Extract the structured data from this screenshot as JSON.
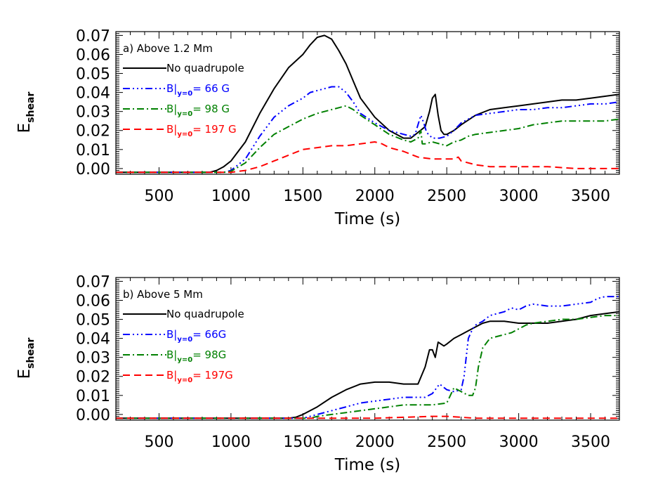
{
  "colors": {
    "no_quadrupole": "#000000",
    "b66": "#0000ff",
    "b98": "#008000",
    "b197": "#ff0000"
  },
  "chart_data": [
    {
      "type": "line",
      "panel_label": "a) Above 1.2 Mm",
      "xlabel": "Time (s)",
      "ylabel_main": "E",
      "ylabel_sub": "shear",
      "xlim": [
        200,
        3700
      ],
      "ylim": [
        -0.003,
        0.072
      ],
      "x_ticks": [
        500,
        1000,
        1500,
        2000,
        2500,
        3000,
        3500
      ],
      "x_tick_labels": [
        "500",
        "1000",
        "1500",
        "2000",
        "2500",
        "3000",
        "3500"
      ],
      "y_ticks": [
        0.0,
        0.01,
        0.02,
        0.03,
        0.04,
        0.05,
        0.06,
        0.07
      ],
      "y_tick_labels": [
        "0.00",
        "0.01",
        "0.02",
        "0.03",
        "0.04",
        "0.05",
        "0.06",
        "0.07"
      ],
      "series": [
        {
          "key": "no_quadrupole",
          "legend_main": "No quadrupole",
          "legend_sub": "",
          "legend_value": "",
          "dash": "",
          "x": [
            200,
            850,
            900,
            950,
            1000,
            1100,
            1200,
            1300,
            1400,
            1500,
            1550,
            1600,
            1650,
            1700,
            1750,
            1800,
            1850,
            1900,
            2000,
            2100,
            2200,
            2250,
            2300,
            2350,
            2380,
            2400,
            2420,
            2440,
            2460,
            2480,
            2500,
            2550,
            2600,
            2700,
            2800,
            2900,
            3000,
            3100,
            3200,
            3300,
            3400,
            3500,
            3600,
            3700
          ],
          "y": [
            -0.002,
            -0.002,
            -0.001,
            0.001,
            0.004,
            0.014,
            0.029,
            0.042,
            0.053,
            0.06,
            0.065,
            0.069,
            0.07,
            0.068,
            0.062,
            0.055,
            0.046,
            0.037,
            0.027,
            0.02,
            0.016,
            0.016,
            0.019,
            0.022,
            0.03,
            0.037,
            0.039,
            0.028,
            0.02,
            0.018,
            0.018,
            0.02,
            0.023,
            0.028,
            0.031,
            0.032,
            0.033,
            0.034,
            0.035,
            0.036,
            0.036,
            0.037,
            0.038,
            0.039
          ]
        },
        {
          "key": "b66",
          "legend_main": "B",
          "legend_sub": "y=0",
          "legend_value": "= 66 G",
          "dash": "10,4,2,4,2,4,2,4",
          "x": [
            200,
            950,
            1000,
            1100,
            1200,
            1300,
            1400,
            1500,
            1550,
            1600,
            1650,
            1700,
            1750,
            1800,
            1850,
            1900,
            2000,
            2100,
            2200,
            2250,
            2280,
            2300,
            2320,
            2340,
            2360,
            2400,
            2450,
            2500,
            2550,
            2600,
            2700,
            2800,
            2900,
            3000,
            3100,
            3200,
            3300,
            3400,
            3500,
            3600,
            3700
          ],
          "y": [
            -0.002,
            -0.002,
            -0.001,
            0.005,
            0.017,
            0.027,
            0.033,
            0.037,
            0.04,
            0.041,
            0.042,
            0.043,
            0.043,
            0.04,
            0.035,
            0.029,
            0.024,
            0.02,
            0.018,
            0.017,
            0.018,
            0.023,
            0.028,
            0.024,
            0.019,
            0.016,
            0.016,
            0.017,
            0.02,
            0.024,
            0.028,
            0.029,
            0.03,
            0.031,
            0.031,
            0.032,
            0.032,
            0.033,
            0.034,
            0.034,
            0.035
          ]
        },
        {
          "key": "b98",
          "legend_main": "B",
          "legend_sub": "y=0",
          "legend_value": "= 98 G",
          "dash": "10,4,2,4",
          "x": [
            200,
            950,
            1000,
            1100,
            1200,
            1300,
            1400,
            1500,
            1600,
            1700,
            1750,
            1800,
            1850,
            1900,
            2000,
            2100,
            2200,
            2250,
            2300,
            2320,
            2330,
            2350,
            2400,
            2450,
            2500,
            2550,
            2600,
            2650,
            2700,
            2800,
            2900,
            3000,
            3100,
            3200,
            3300,
            3400,
            3500,
            3600,
            3700
          ],
          "y": [
            -0.002,
            -0.002,
            -0.0015,
            0.003,
            0.011,
            0.018,
            0.022,
            0.026,
            0.029,
            0.031,
            0.032,
            0.033,
            0.031,
            0.028,
            0.023,
            0.018,
            0.015,
            0.014,
            0.016,
            0.02,
            0.013,
            0.013,
            0.014,
            0.013,
            0.012,
            0.014,
            0.015,
            0.017,
            0.018,
            0.019,
            0.02,
            0.021,
            0.023,
            0.024,
            0.025,
            0.025,
            0.025,
            0.025,
            0.026
          ]
        },
        {
          "key": "b197",
          "legend_main": "B",
          "legend_sub": "y=0",
          "legend_value": "= 197 G",
          "dash": "10,6",
          "x": [
            200,
            1000,
            1050,
            1100,
            1200,
            1300,
            1400,
            1500,
            1600,
            1700,
            1800,
            1900,
            2000,
            2050,
            2100,
            2200,
            2300,
            2400,
            2500,
            2550,
            2580,
            2600,
            2700,
            2800,
            3000,
            3200,
            3400,
            3600,
            3700
          ],
          "y": [
            -0.002,
            -0.002,
            -0.0015,
            -0.001,
            0.001,
            0.004,
            0.007,
            0.01,
            0.011,
            0.012,
            0.012,
            0.013,
            0.014,
            0.013,
            0.011,
            0.009,
            0.006,
            0.005,
            0.005,
            0.005,
            0.006,
            0.004,
            0.002,
            0.001,
            0.001,
            0.001,
            0.0,
            0.0,
            0.0
          ]
        }
      ]
    },
    {
      "type": "line",
      "panel_label": "b) Above 5 Mm",
      "xlabel": "Time (s)",
      "ylabel_main": "E",
      "ylabel_sub": "shear",
      "xlim": [
        200,
        3700
      ],
      "ylim": [
        -0.003,
        0.072
      ],
      "x_ticks": [
        500,
        1000,
        1500,
        2000,
        2500,
        3000,
        3500
      ],
      "x_tick_labels": [
        "500",
        "1000",
        "1500",
        "2000",
        "2500",
        "3000",
        "3500"
      ],
      "y_ticks": [
        0.0,
        0.01,
        0.02,
        0.03,
        0.04,
        0.05,
        0.06,
        0.07
      ],
      "y_tick_labels": [
        "0.00",
        "0.01",
        "0.02",
        "0.03",
        "0.04",
        "0.05",
        "0.06",
        "0.07"
      ],
      "series": [
        {
          "key": "no_quadrupole",
          "legend_main": "No quadrupole",
          "legend_sub": "",
          "legend_value": "",
          "dash": "",
          "x": [
            200,
            1400,
            1450,
            1500,
            1600,
            1700,
            1800,
            1900,
            2000,
            2100,
            2200,
            2300,
            2350,
            2380,
            2400,
            2420,
            2440,
            2460,
            2480,
            2500,
            2550,
            2600,
            2650,
            2700,
            2750,
            2800,
            2850,
            2900,
            3000,
            3100,
            3200,
            3300,
            3400,
            3500,
            3600,
            3700
          ],
          "y": [
            -0.002,
            -0.002,
            -0.0015,
            0.0,
            0.004,
            0.009,
            0.013,
            0.016,
            0.017,
            0.017,
            0.016,
            0.016,
            0.025,
            0.034,
            0.034,
            0.03,
            0.038,
            0.037,
            0.036,
            0.037,
            0.04,
            0.042,
            0.044,
            0.046,
            0.048,
            0.049,
            0.049,
            0.049,
            0.048,
            0.048,
            0.048,
            0.049,
            0.05,
            0.052,
            0.053,
            0.054
          ]
        },
        {
          "key": "b66",
          "legend_main": "B",
          "legend_sub": "y=0",
          "legend_value": "= 66G",
          "dash": "10,4,2,4,2,4,2,4",
          "x": [
            200,
            1500,
            1600,
            1700,
            1800,
            1900,
            2000,
            2100,
            2200,
            2300,
            2350,
            2400,
            2450,
            2500,
            2550,
            2600,
            2620,
            2650,
            2680,
            2700,
            2750,
            2800,
            2850,
            2900,
            2950,
            3000,
            3050,
            3100,
            3200,
            3300,
            3400,
            3500,
            3550,
            3600,
            3700
          ],
          "y": [
            -0.002,
            -0.002,
            0.0,
            0.002,
            0.004,
            0.006,
            0.007,
            0.008,
            0.009,
            0.009,
            0.009,
            0.011,
            0.016,
            0.013,
            0.012,
            0.013,
            0.02,
            0.04,
            0.045,
            0.047,
            0.049,
            0.052,
            0.053,
            0.054,
            0.056,
            0.055,
            0.057,
            0.058,
            0.057,
            0.057,
            0.058,
            0.059,
            0.061,
            0.062,
            0.062
          ]
        },
        {
          "key": "b98",
          "legend_main": "B",
          "legend_sub": "y=0",
          "legend_value": "= 98G",
          "dash": "10,4,2,4",
          "x": [
            200,
            1550,
            1600,
            1700,
            1800,
            1900,
            2000,
            2100,
            2200,
            2300,
            2400,
            2500,
            2550,
            2600,
            2650,
            2680,
            2700,
            2720,
            2750,
            2800,
            2850,
            2900,
            2950,
            3000,
            3050,
            3100,
            3200,
            3300,
            3400,
            3500,
            3600,
            3700
          ],
          "y": [
            -0.002,
            -0.002,
            -0.001,
            0.0,
            0.001,
            0.002,
            0.003,
            0.004,
            0.005,
            0.005,
            0.005,
            0.006,
            0.014,
            0.012,
            0.01,
            0.01,
            0.014,
            0.025,
            0.035,
            0.04,
            0.041,
            0.042,
            0.043,
            0.045,
            0.047,
            0.048,
            0.049,
            0.05,
            0.05,
            0.051,
            0.052,
            0.052
          ]
        },
        {
          "key": "b197",
          "legend_main": "B",
          "legend_sub": "y=0",
          "legend_value": "= 197G",
          "dash": "10,6",
          "x": [
            200,
            1800,
            2000,
            2200,
            2400,
            2500,
            2600,
            2700,
            2800,
            3000,
            3700
          ],
          "y": [
            -0.002,
            -0.002,
            -0.002,
            -0.0015,
            -0.001,
            -0.001,
            -0.0015,
            -0.002,
            -0.002,
            -0.002,
            -0.002
          ]
        }
      ]
    }
  ]
}
